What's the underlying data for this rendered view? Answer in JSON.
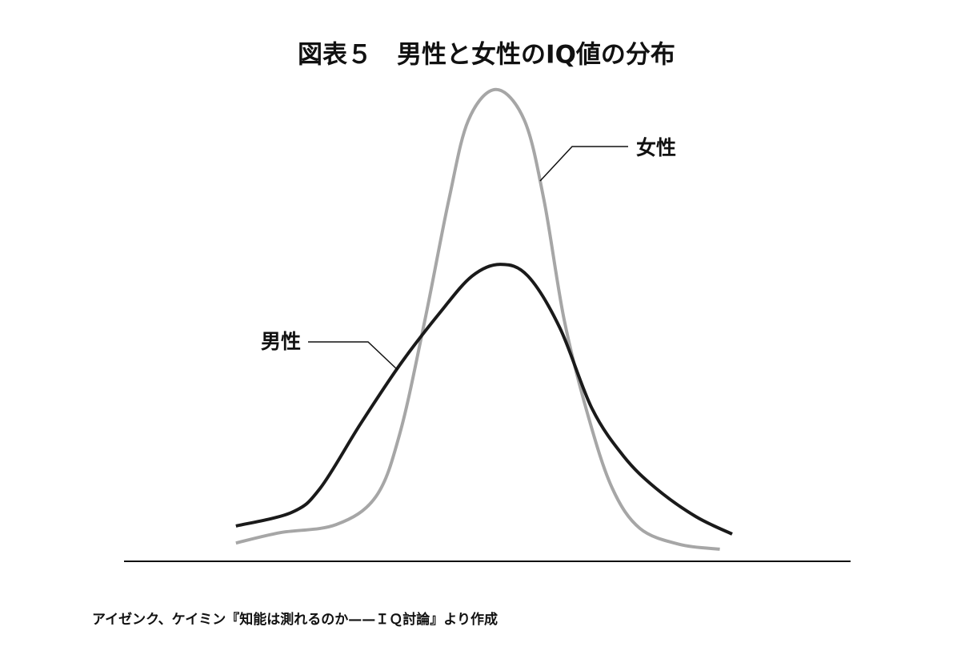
{
  "chart_data": {
    "type": "line",
    "title": "図表５　男性と女性のIQ値の分布",
    "source": "アイゼンク、ケイミン『知能は測れるのか——ＩＱ討論』より作成",
    "xlim": [
      0,
      100
    ],
    "ylim": [
      0,
      100
    ],
    "series": [
      {
        "name": "女性",
        "color": "#a6a6a6",
        "x": [
          15.4,
          21.5,
          29.2,
          34.7,
          38.0,
          41.4,
          44.7,
          47.4,
          51.2,
          55.1,
          57.8,
          60.6,
          63.9,
          67.2,
          71.0,
          76.5,
          82.0
        ],
        "values": [
          3.7,
          5.9,
          7.6,
          13.6,
          27.1,
          50.8,
          76.3,
          93.2,
          99.7,
          93.2,
          76.3,
          50.8,
          30.5,
          15.3,
          6.8,
          3.4,
          2.4
        ]
      },
      {
        "name": "男性",
        "color": "#1a1a1a",
        "x": [
          15.4,
          23.1,
          27.0,
          32.5,
          38.0,
          43.5,
          47.9,
          51.8,
          55.6,
          60.0,
          64.4,
          68.8,
          73.2,
          78.7,
          83.7
        ],
        "values": [
          7.3,
          10.2,
          15.3,
          28.8,
          41.5,
          52.5,
          60.2,
          62.7,
          60.2,
          49.2,
          32.2,
          22.0,
          15.3,
          9.3,
          5.6
        ]
      }
    ]
  }
}
